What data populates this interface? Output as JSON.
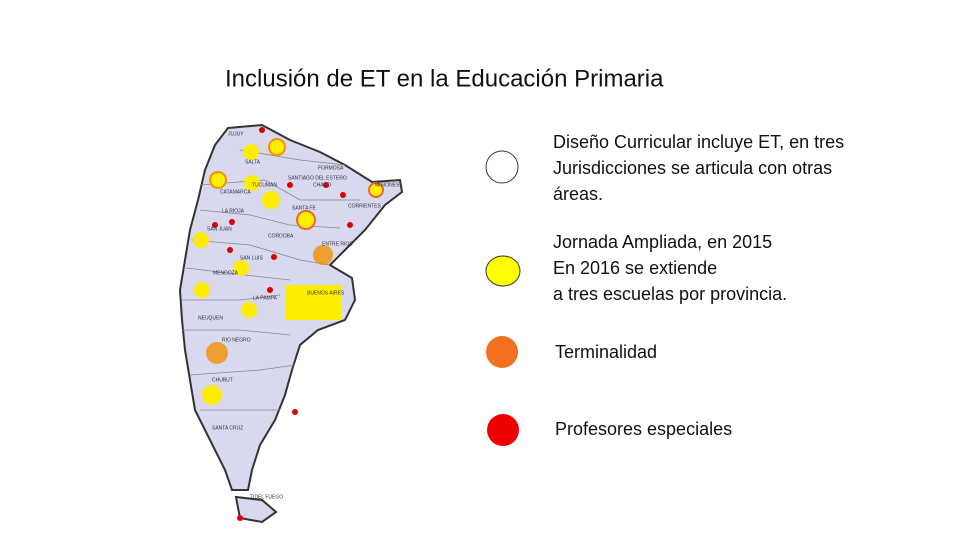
{
  "title": "Inclusión de ET en la Educación Primaria",
  "legend": [
    {
      "lines": [
        "Diseño Curricular incluye ET, en tres",
        "Jurisdicciones se articula con otras",
        "áreas."
      ]
    },
    {
      "lines": [
        "Jornada Ampliada, en 2015",
        "En 2016 se extiende",
        "a tres escuelas por provincia."
      ]
    },
    {
      "lines": [
        "Terminalidad"
      ]
    },
    {
      "lines": [
        "Profesores especiales"
      ]
    }
  ],
  "map": {
    "provinces": [
      "JUJUY",
      "SALTA",
      "FORMOSA",
      "CATAMARCA",
      "SANTIAGO DEL ESTERO",
      "TUCUMAN",
      "CHACO",
      "MISIONES",
      "CORRIENTES",
      "LA RIOJA",
      "SANTA FE",
      "SAN JUAN",
      "CORDOBA",
      "ENTRE RIOS",
      "SAN LUIS",
      "MENDOZA",
      "BUENOS AIRES",
      "LA PAMPA",
      "NEUQUEN",
      "RIO NEGRO",
      "CHUBUT",
      "SANTA CRUZ",
      "TIDEL FUEGO"
    ]
  }
}
